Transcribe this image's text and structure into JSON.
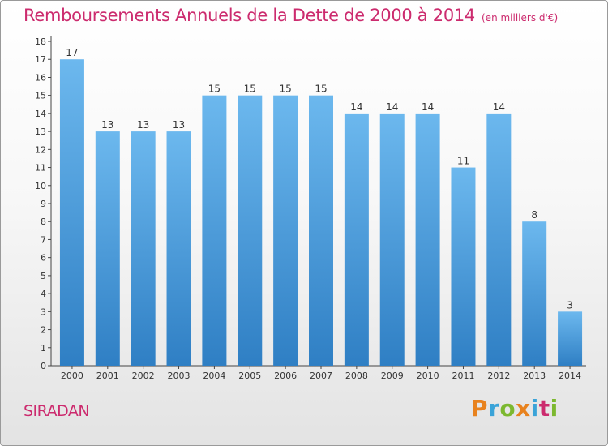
{
  "title": "Remboursements Annuels de la Dette de 2000 à 2014",
  "unit_label": "(en milliers d'€)",
  "commune": "SIRADAN",
  "brand": {
    "text": "Proxiti",
    "letters": [
      "P",
      "r",
      "o",
      "x",
      "i",
      "t",
      "i"
    ],
    "colors": [
      "#e8821e",
      "#3aa3d8",
      "#7cb82f",
      "#e8821e",
      "#3aa3d8",
      "#cc2b6e",
      "#7cb82f"
    ]
  },
  "colors": {
    "bar_top": "#6cb8ee",
    "bar_bottom": "#2f7fc4",
    "accent": "#cc2b6e"
  },
  "chart_data": {
    "type": "bar",
    "title": "Remboursements Annuels de la Dette de 2000 à 2014",
    "ylabel": "en milliers d'€",
    "xlabel": "",
    "categories": [
      "2000",
      "2001",
      "2002",
      "2003",
      "2004",
      "2005",
      "2006",
      "2007",
      "2008",
      "2009",
      "2010",
      "2011",
      "2012",
      "2013",
      "2014"
    ],
    "values": [
      17,
      13,
      13,
      13,
      15,
      15,
      15,
      15,
      14,
      14,
      14,
      11,
      14,
      8,
      3
    ],
    "ylim": [
      0,
      18
    ],
    "yticks": [
      0,
      1,
      2,
      3,
      4,
      5,
      6,
      7,
      8,
      9,
      10,
      11,
      12,
      13,
      14,
      15,
      16,
      17,
      18
    ],
    "grid": false
  }
}
